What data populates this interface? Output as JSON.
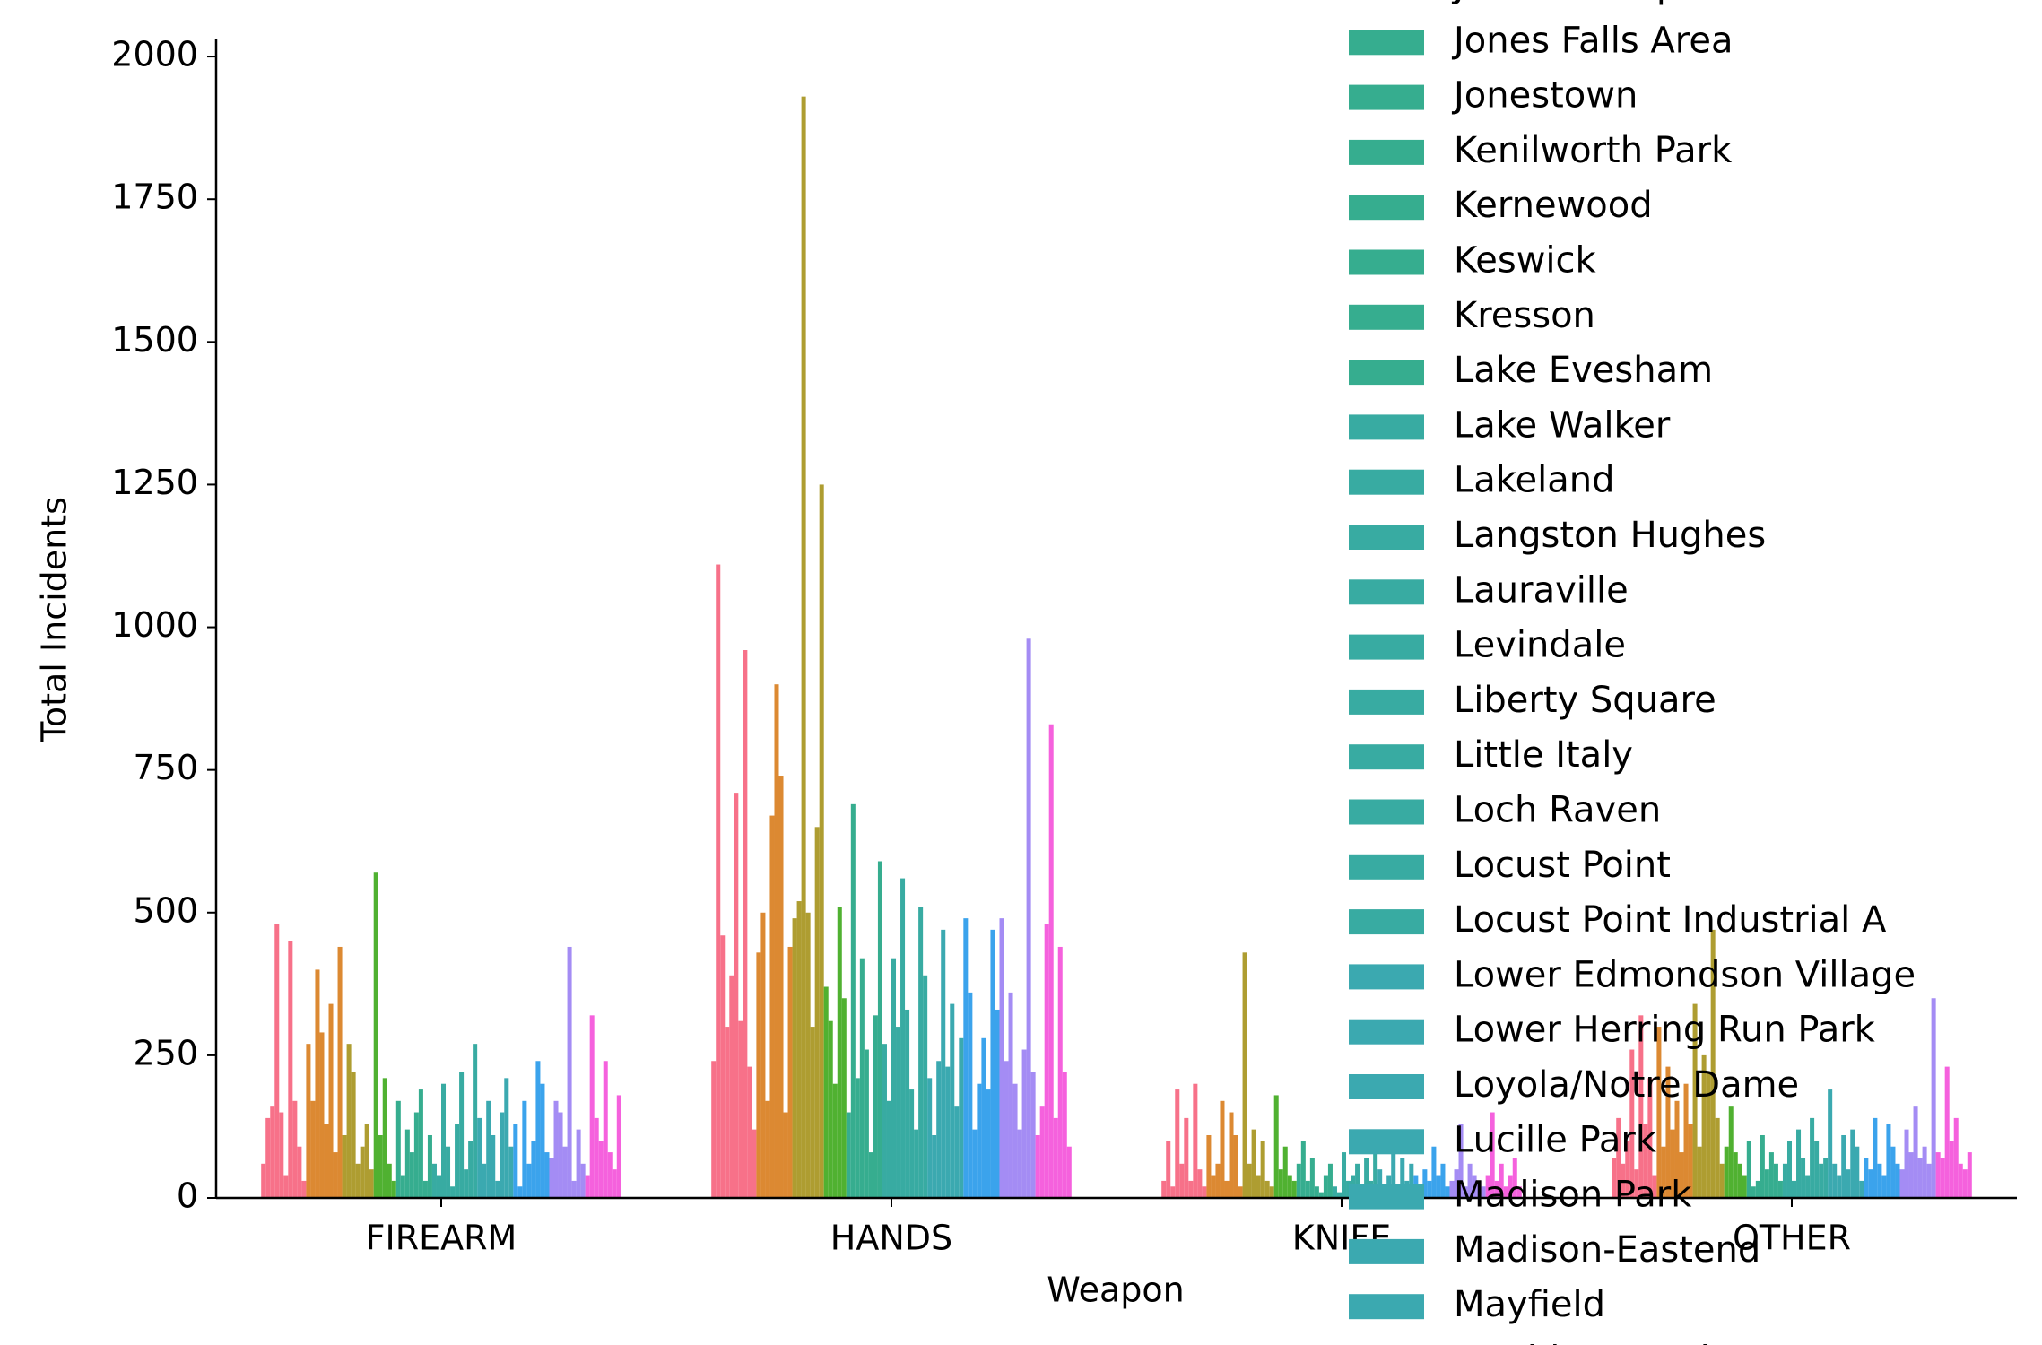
{
  "chart_data": {
    "type": "bar",
    "xlabel": "Weapon",
    "ylabel": "Total Incidents",
    "categories": [
      "FIREARM",
      "HANDS",
      "KNIFE",
      "OTHER"
    ],
    "ylim": [
      0,
      2030
    ],
    "yticks": [
      0,
      250,
      500,
      750,
      1000,
      1250,
      1500,
      1750,
      2000
    ],
    "series": [
      {
        "color": "#f77189",
        "values": [
          60,
          240,
          30,
          70
        ]
      },
      {
        "color": "#f77189",
        "values": [
          140,
          1110,
          100,
          140
        ]
      },
      {
        "color": "#f77189",
        "values": [
          160,
          460,
          20,
          60
        ]
      },
      {
        "color": "#f77189",
        "values": [
          480,
          300,
          190,
          100
        ]
      },
      {
        "color": "#f77189",
        "values": [
          150,
          390,
          60,
          260
        ]
      },
      {
        "color": "#f77189",
        "values": [
          40,
          710,
          140,
          50
        ]
      },
      {
        "color": "#f77189",
        "values": [
          450,
          310,
          30,
          320
        ]
      },
      {
        "color": "#f77189",
        "values": [
          170,
          960,
          200,
          130
        ]
      },
      {
        "color": "#f77189",
        "values": [
          90,
          230,
          50,
          210
        ]
      },
      {
        "color": "#f77189",
        "values": [
          30,
          120,
          20,
          40
        ]
      },
      {
        "color": "#dc8932",
        "values": [
          270,
          430,
          110,
          300
        ]
      },
      {
        "color": "#dc8932",
        "values": [
          170,
          500,
          40,
          90
        ]
      },
      {
        "color": "#dc8932",
        "values": [
          400,
          170,
          60,
          230
        ]
      },
      {
        "color": "#dc8932",
        "values": [
          290,
          670,
          170,
          120
        ]
      },
      {
        "color": "#dc8932",
        "values": [
          130,
          900,
          30,
          170
        ]
      },
      {
        "color": "#dc8932",
        "values": [
          340,
          740,
          150,
          80
        ]
      },
      {
        "color": "#dc8932",
        "values": [
          80,
          150,
          110,
          200
        ]
      },
      {
        "color": "#dc8932",
        "values": [
          440,
          440,
          20,
          130
        ]
      },
      {
        "color": "#ae9d31",
        "values": [
          110,
          490,
          430,
          340
        ]
      },
      {
        "color": "#ae9d31",
        "values": [
          270,
          520,
          60,
          90
        ]
      },
      {
        "color": "#ae9d31",
        "values": [
          220,
          1930,
          120,
          250
        ]
      },
      {
        "color": "#ae9d31",
        "values": [
          60,
          500,
          40,
          220
        ]
      },
      {
        "color": "#ae9d31",
        "values": [
          90,
          300,
          100,
          470
        ]
      },
      {
        "color": "#ae9d31",
        "values": [
          130,
          650,
          30,
          140
        ]
      },
      {
        "color": "#ae9d31",
        "values": [
          50,
          1250,
          20,
          60
        ]
      },
      {
        "color": "#50b131",
        "values": [
          570,
          370,
          180,
          90
        ]
      },
      {
        "color": "#50b131",
        "values": [
          110,
          310,
          50,
          160
        ]
      },
      {
        "color": "#50b131",
        "values": [
          210,
          200,
          90,
          80
        ]
      },
      {
        "color": "#50b131",
        "values": [
          60,
          510,
          40,
          60
        ]
      },
      {
        "color": "#50b131",
        "values": [
          30,
          350,
          30,
          40
        ]
      },
      {
        "name": "Johnston Square",
        "color": "#36ad8f",
        "values": [
          170,
          150,
          60,
          100
        ]
      },
      {
        "name": "Jones Falls Area",
        "color": "#36ad8f",
        "values": [
          40,
          690,
          100,
          20
        ]
      },
      {
        "name": "Jonestown",
        "color": "#36ad8f",
        "values": [
          120,
          210,
          30,
          30
        ]
      },
      {
        "name": "Kenilworth Park",
        "color": "#36ad8f",
        "values": [
          80,
          420,
          70,
          110
        ]
      },
      {
        "name": "Kernewood",
        "color": "#36ad8f",
        "values": [
          150,
          260,
          20,
          50
        ]
      },
      {
        "name": "Keswick",
        "color": "#36ad8f",
        "values": [
          190,
          80,
          10,
          80
        ]
      },
      {
        "name": "Kresson",
        "color": "#36ad8f",
        "values": [
          30,
          320,
          40,
          60
        ]
      },
      {
        "name": "Lake Evesham",
        "color": "#36ad8f",
        "values": [
          110,
          590,
          60,
          30
        ]
      },
      {
        "name": "Lake Walker",
        "color": "#38aba2",
        "values": [
          60,
          270,
          20,
          60
        ]
      },
      {
        "name": "Lakeland",
        "color": "#38aba2",
        "values": [
          40,
          170,
          10,
          100
        ]
      },
      {
        "name": "Langston Hughes",
        "color": "#38aba2",
        "values": [
          200,
          420,
          80,
          30
        ]
      },
      {
        "name": "Lauraville",
        "color": "#38aba2",
        "values": [
          90,
          300,
          30,
          120
        ]
      },
      {
        "name": "Levindale",
        "color": "#38aba2",
        "values": [
          20,
          560,
          40,
          70
        ]
      },
      {
        "name": "Liberty Square",
        "color": "#38aba2",
        "values": [
          130,
          330,
          60,
          40
        ]
      },
      {
        "name": "Little Italy",
        "color": "#38aba2",
        "values": [
          220,
          190,
          20,
          140
        ]
      },
      {
        "name": "Loch Raven",
        "color": "#38aba2",
        "values": [
          50,
          120,
          70,
          100
        ]
      },
      {
        "name": "Locust Point",
        "color": "#38aba2",
        "values": [
          100,
          510,
          30,
          60
        ]
      },
      {
        "name": "Locust Point Industrial A",
        "color": "#38aba2",
        "values": [
          270,
          390,
          100,
          70
        ]
      },
      {
        "name": "Lower Edmondson Village",
        "color": "#3ba9b0",
        "values": [
          140,
          210,
          50,
          190
        ]
      },
      {
        "name": "Lower Herring Run Park",
        "color": "#3ba9b0",
        "values": [
          60,
          110,
          20,
          60
        ]
      },
      {
        "name": "Loyola/Notre Dame",
        "color": "#3ba9b0",
        "values": [
          170,
          240,
          40,
          40
        ]
      },
      {
        "name": "Lucille Park",
        "color": "#3ba9b0",
        "values": [
          110,
          470,
          80,
          110
        ]
      },
      {
        "name": "Madison Park",
        "color": "#3ba9b0",
        "values": [
          30,
          230,
          10,
          50
        ]
      },
      {
        "name": "Madison-Eastend",
        "color": "#3ba9b0",
        "values": [
          150,
          340,
          70,
          120
        ]
      },
      {
        "name": "Mayfield",
        "color": "#3ba9b0",
        "values": [
          210,
          160,
          30,
          90
        ]
      },
      {
        "name": "McElderry Park",
        "color": "#3ba9b0",
        "values": [
          90,
          280,
          60,
          30
        ]
      },
      {
        "color": "#3ba3ec",
        "values": [
          130,
          490,
          40,
          70
        ]
      },
      {
        "color": "#3ba3ec",
        "values": [
          20,
          360,
          20,
          50
        ]
      },
      {
        "color": "#3ba3ec",
        "values": [
          170,
          120,
          50,
          140
        ]
      },
      {
        "color": "#3ba3ec",
        "values": [
          60,
          200,
          30,
          60
        ]
      },
      {
        "color": "#3ba3ec",
        "values": [
          100,
          280,
          90,
          40
        ]
      },
      {
        "color": "#3ba3ec",
        "values": [
          240,
          190,
          40,
          130
        ]
      },
      {
        "color": "#3ba3ec",
        "values": [
          200,
          470,
          60,
          90
        ]
      },
      {
        "color": "#3ba3ec",
        "values": [
          80,
          330,
          20,
          60
        ]
      },
      {
        "color": "#a48cf4",
        "values": [
          70,
          490,
          30,
          50
        ]
      },
      {
        "color": "#a48cf4",
        "values": [
          170,
          240,
          50,
          120
        ]
      },
      {
        "color": "#a48cf4",
        "values": [
          150,
          360,
          130,
          80
        ]
      },
      {
        "color": "#a48cf4",
        "values": [
          90,
          200,
          20,
          160
        ]
      },
      {
        "color": "#a48cf4",
        "values": [
          440,
          120,
          60,
          70
        ]
      },
      {
        "color": "#a48cf4",
        "values": [
          30,
          260,
          40,
          90
        ]
      },
      {
        "color": "#a48cf4",
        "values": [
          120,
          980,
          30,
          60
        ]
      },
      {
        "color": "#a48cf4",
        "values": [
          60,
          220,
          20,
          350
        ]
      },
      {
        "color": "#f561dd",
        "values": [
          40,
          110,
          40,
          80
        ]
      },
      {
        "color": "#f561dd",
        "values": [
          320,
          160,
          150,
          70
        ]
      },
      {
        "color": "#f561dd",
        "values": [
          140,
          480,
          30,
          230
        ]
      },
      {
        "color": "#f561dd",
        "values": [
          100,
          830,
          60,
          100
        ]
      },
      {
        "color": "#f561dd",
        "values": [
          240,
          140,
          20,
          140
        ]
      },
      {
        "color": "#f561dd",
        "values": [
          80,
          440,
          40,
          60
        ]
      },
      {
        "color": "#f561dd",
        "values": [
          50,
          220,
          70,
          50
        ]
      },
      {
        "color": "#f561dd",
        "values": [
          180,
          90,
          20,
          80
        ]
      }
    ]
  }
}
